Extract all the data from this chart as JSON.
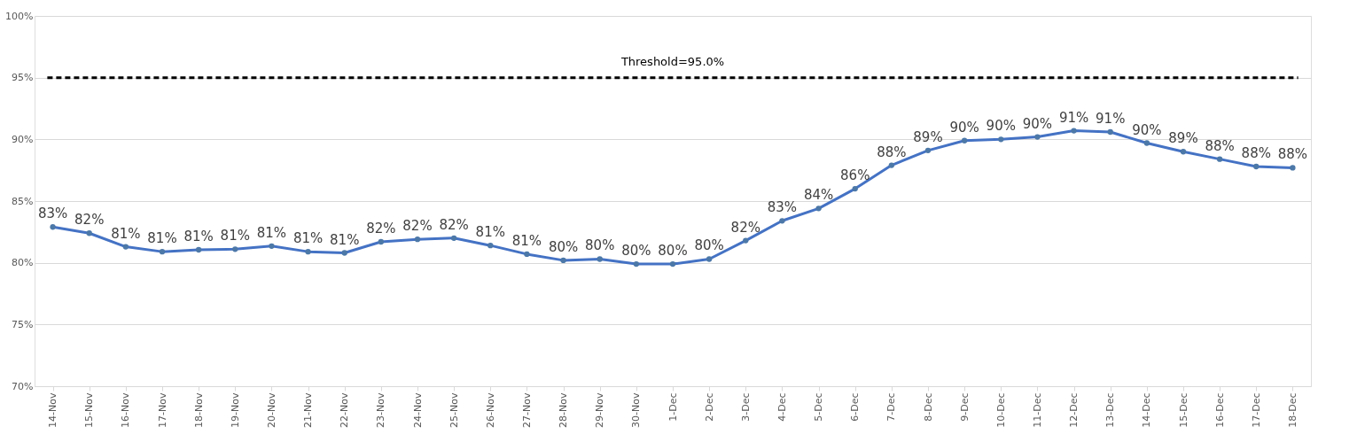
{
  "chart_data": {
    "type": "line",
    "categories": [
      "14-Nov",
      "15-Nov",
      "16-Nov",
      "17-Nov",
      "18-Nov",
      "19-Nov",
      "20-Nov",
      "21-Nov",
      "22-Nov",
      "23-Nov",
      "24-Nov",
      "25-Nov",
      "26-Nov",
      "27-Nov",
      "28-Nov",
      "29-Nov",
      "30-Nov",
      "1-Dec",
      "2-Dec",
      "3-Dec",
      "4-Dec",
      "5-Dec",
      "6-Dec",
      "7-Dec",
      "8-Dec",
      "9-Dec",
      "10-Dec",
      "11-Dec",
      "12-Dec",
      "13-Dec",
      "14-Dec",
      "15-Dec",
      "16-Dec",
      "17-Dec",
      "18-Dec"
    ],
    "series": [
      {
        "color": "#4472c4",
        "values": [
          82.9,
          82.4,
          81.3,
          80.9,
          81.05,
          81.1,
          81.35,
          80.9,
          80.8,
          81.7,
          81.9,
          82.0,
          81.4,
          80.7,
          80.2,
          80.3,
          79.9,
          79.9,
          80.3,
          81.8,
          83.4,
          84.4,
          86.0,
          87.9,
          89.1,
          89.9,
          90.0,
          90.2,
          90.7,
          90.6,
          89.7,
          89.0,
          88.4,
          87.8,
          87.7
        ],
        "value_labels": [
          "83%",
          "82%",
          "81%",
          "81%",
          "81%",
          "81%",
          "81%",
          "81%",
          "81%",
          "82%",
          "82%",
          "82%",
          "81%",
          "81%",
          "80%",
          "80%",
          "80%",
          "80%",
          "80%",
          "82%",
          "83%",
          "84%",
          "86%",
          "88%",
          "89%",
          "90%",
          "90%",
          "90%",
          "91%",
          "91%",
          "90%",
          "89%",
          "88%",
          "88%",
          "88%"
        ]
      }
    ],
    "ylim": [
      70,
      100
    ],
    "yticks": [
      {
        "value": 70,
        "label": "70%"
      },
      {
        "value": 75,
        "label": "75%"
      },
      {
        "value": 80,
        "label": "80%"
      },
      {
        "value": 85,
        "label": "85%"
      },
      {
        "value": 90,
        "label": "90%"
      },
      {
        "value": 95,
        "label": "95%"
      },
      {
        "value": 100,
        "label": "100%"
      }
    ],
    "ref_lines": [
      {
        "axis": "y",
        "value": 95,
        "label": "Threshold=95.0%",
        "color": "#000000",
        "line_style": "dashed"
      }
    ],
    "grid": "y",
    "marker": "circle",
    "line_style": "solid"
  }
}
